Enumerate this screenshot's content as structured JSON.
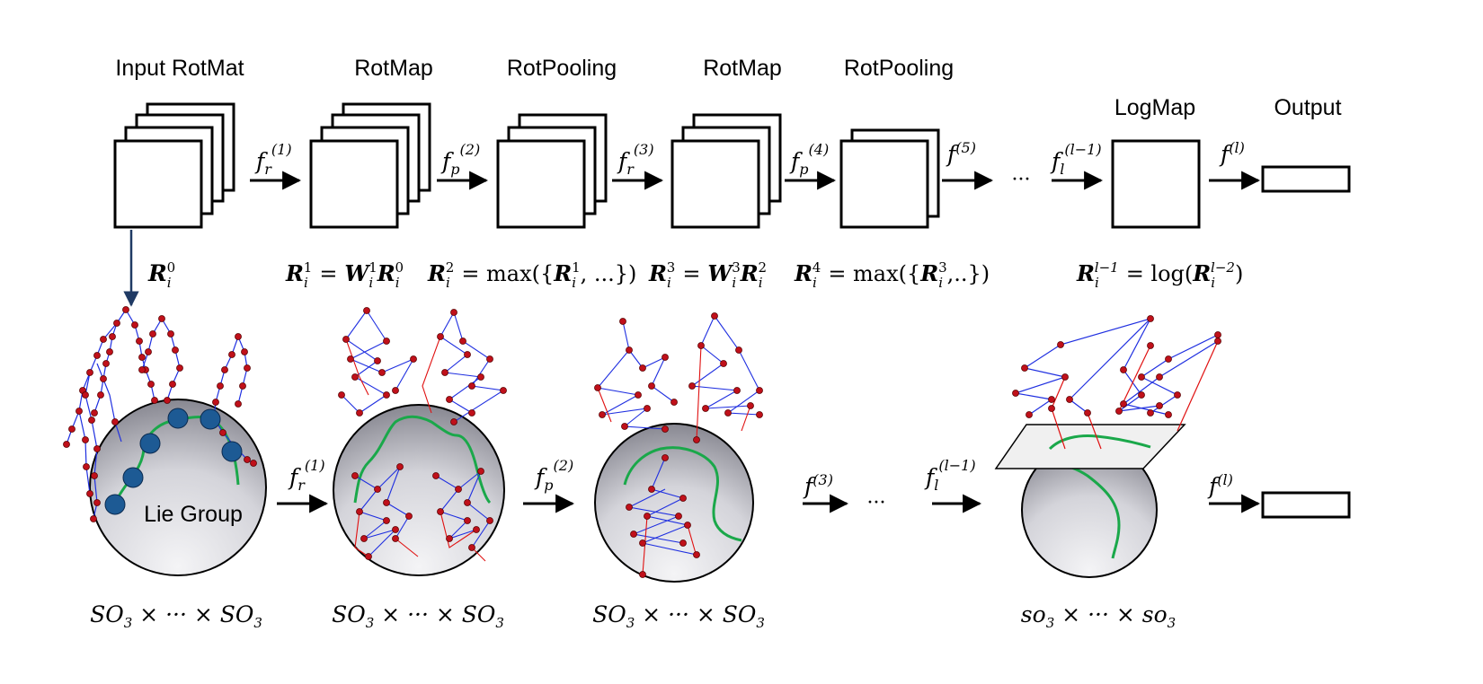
{
  "colors": {
    "skeleton_joint": "#c0101a",
    "skeleton_blue_bone": "#1f2fe0",
    "skeleton_red_bone": "#e01010",
    "trajectory": "#1aa84a",
    "lie_point": "#1d5a94",
    "sphere_light": "#f2f2f4",
    "sphere_dark": "#8c8c94",
    "down_arrow": "#1f3a64"
  },
  "top_row": {
    "labels": {
      "input": "Input RotMat",
      "rotmap1": "RotMap",
      "rotpool1": "RotPooling",
      "rotmap2": "RotMap",
      "rotpool2": "RotPooling",
      "logmap": "LogMap",
      "output": "Output"
    },
    "arrows": {
      "a1": {
        "base": "f",
        "sub": "r",
        "sup": "(1)"
      },
      "a2": {
        "base": "f",
        "sub": "p",
        "sup": "(2)"
      },
      "a3": {
        "base": "f",
        "sub": "r",
        "sup": "(3)"
      },
      "a4": {
        "base": "f",
        "sub": "p",
        "sup": "(4)"
      },
      "a5": {
        "base": "f",
        "sub": "",
        "sup": "(5)"
      },
      "a6": {
        "base": "f",
        "sub": "l",
        "sup": "(l−1)"
      },
      "a7": {
        "base": "f",
        "sub": "",
        "sup": "(l)"
      }
    },
    "ellipsis": "···"
  },
  "equations": {
    "e0": {
      "R": "R",
      "sub": "i",
      "sup": "0"
    },
    "e1": {
      "lhs_sup": "1",
      "eq": "=",
      "W": "W",
      "W_sup": "1",
      "rhs_sup": "0"
    },
    "e2": {
      "lhs_sup": "2",
      "eq": "= max({",
      "inner_sup": "1",
      "tail": ", ...})"
    },
    "e3": {
      "lhs_sup": "3",
      "eq": "=",
      "W": "W",
      "W_sup": "3",
      "rhs_sup": "2"
    },
    "e4": {
      "lhs_sup": "4",
      "eq": "= max({",
      "inner_sup": "3",
      "tail": ",..})"
    },
    "e5": {
      "lhs_sup": "l−1",
      "eq": "= log(",
      "inner_sup": "l−2",
      "tail": ")"
    },
    "sub_i": "i"
  },
  "bottom_row": {
    "lie_group_label": "Lie Group",
    "arrows": {
      "b1": {
        "base": "f",
        "sub": "r",
        "sup": "(1)"
      },
      "b2": {
        "base": "f",
        "sub": "p",
        "sup": "(2)"
      },
      "b3": {
        "base": "f",
        "sub": "",
        "sup": "(3)"
      },
      "b4": {
        "base": "f",
        "sub": "l",
        "sup": "(l−1)"
      },
      "b5": {
        "base": "f",
        "sub": "",
        "sup": "(l)"
      }
    },
    "ellipsis": "···",
    "spaces": {
      "s1": {
        "a": "SO",
        "sub": "3",
        "mid": " × ··· × ",
        "b": "SO",
        "bsub": "3"
      },
      "s2": {
        "a": "SO",
        "sub": "3",
        "mid": " × ··· × ",
        "b": "SO",
        "bsub": "3"
      },
      "s3": {
        "a": "SO",
        "sub": "3",
        "mid": " × ··· × ",
        "b": "SO",
        "bsub": "3"
      },
      "s4": {
        "a": "so",
        "sub": "3",
        "mid": " × ··· × ",
        "b": "so",
        "bsub": "3"
      }
    }
  }
}
